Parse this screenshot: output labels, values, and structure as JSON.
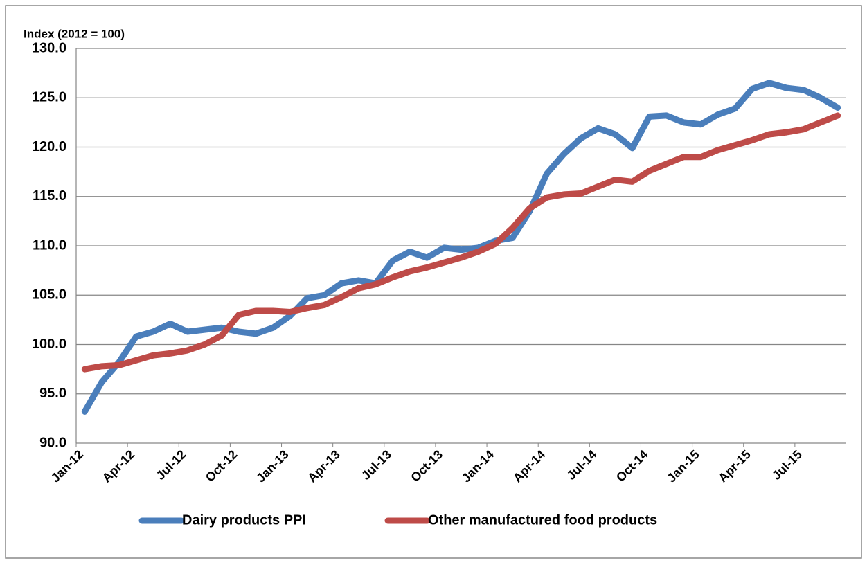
{
  "chart_data": {
    "type": "line",
    "y_label": "Index (2012 = 100)",
    "categories": [
      "Jan-12",
      null,
      null,
      "Apr-12",
      null,
      null,
      "Jul-12",
      null,
      null,
      "Oct-12",
      null,
      null,
      "Jan-13",
      null,
      null,
      "Apr-13",
      null,
      null,
      "Jul-13",
      null,
      null,
      "Oct-13",
      null,
      null,
      "Jan-14",
      null,
      null,
      "Apr-14",
      null,
      null,
      "Jul-14",
      null,
      null,
      "Oct-14",
      null,
      null,
      "Jan-15",
      null,
      null,
      "Apr-15",
      null,
      null,
      "Jul-15",
      null,
      null
    ],
    "series": [
      {
        "name": "Dairy products PPI",
        "color": "#4a7ebb",
        "values": [
          93.2,
          96.2,
          98.2,
          100.8,
          101.3,
          102.1,
          101.3,
          101.5,
          101.7,
          101.3,
          101.1,
          101.7,
          102.9,
          104.7,
          105.0,
          106.2,
          106.5,
          106.2,
          108.5,
          109.4,
          108.8,
          109.8,
          109.6,
          109.8,
          110.5,
          110.8,
          113.5,
          117.3,
          119.3,
          120.9,
          121.9,
          121.3,
          119.9,
          123.1,
          123.2,
          122.5,
          122.3,
          123.3,
          123.9,
          125.9,
          126.5,
          126.0,
          125.8,
          125.0,
          124.0
        ]
      },
      {
        "name": "Other manufactured food products",
        "color": "#be4b48",
        "values": [
          97.5,
          97.8,
          97.9,
          98.4,
          98.9,
          99.1,
          99.4,
          100.0,
          100.9,
          103.0,
          103.4,
          103.4,
          103.3,
          103.7,
          104.0,
          104.8,
          105.7,
          106.1,
          106.8,
          107.4,
          107.8,
          108.3,
          108.8,
          109.4,
          110.2,
          111.8,
          113.8,
          114.9,
          115.2,
          115.3,
          116.0,
          116.7,
          116.5,
          117.6,
          118.3,
          119.0,
          119.0,
          119.7,
          120.2,
          120.7,
          121.3,
          121.5,
          121.8,
          122.5,
          123.2
        ]
      }
    ],
    "ylim": [
      90,
      130
    ],
    "yticks": [
      {
        "value": 90,
        "label": "90.0"
      },
      {
        "value": 95,
        "label": "95.0"
      },
      {
        "value": 100,
        "label": "100.0"
      },
      {
        "value": 105,
        "label": "105.0"
      },
      {
        "value": 110,
        "label": "110.0"
      },
      {
        "value": 115,
        "label": "115.0"
      },
      {
        "value": 120,
        "label": "120.0"
      },
      {
        "value": 125,
        "label": "125.0"
      },
      {
        "value": 130,
        "label": "130.0"
      }
    ],
    "grid": true,
    "legend": "bottom"
  }
}
